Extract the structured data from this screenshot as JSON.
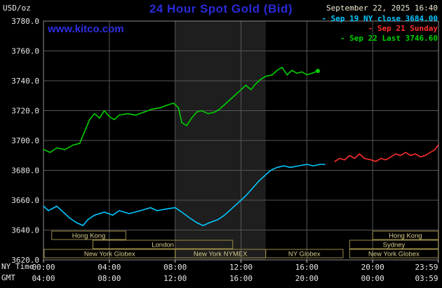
{
  "header": {
    "units_label": "USD/oz",
    "title": "24 Hour Spot Gold (Bid)",
    "site": "www.kitco.com",
    "datetime": "September 22, 2025 16:40",
    "legend": [
      {
        "label": "Sep 19 NY close 3684.00",
        "color": "#00c8ff"
      },
      {
        "label": "Sep 21 Sunday",
        "color": "#ff2e2e"
      },
      {
        "label": "Sep 22 Last 3746.60",
        "color": "#00d000"
      }
    ]
  },
  "axes": {
    "ny_time_label": "NY Time",
    "gmt_label": "GMT",
    "ny_ticks": [
      "00:00",
      "04:00",
      "08:00",
      "12:00",
      "16:00",
      "20:00",
      "23:59"
    ],
    "gmt_ticks": [
      "04:00",
      "08:00",
      "12:00",
      "16:00",
      "20:00",
      "00:00",
      "03:59"
    ]
  },
  "colors": {
    "background": "#000000",
    "grid": "#565656",
    "plot_border": "#8c8c8c",
    "nymex_band": "#1e1e1e",
    "session_border": "#9a8c46",
    "session_text": "#d9cb8a",
    "axis_text": "#e8e8e8",
    "tick": "#cccccc"
  },
  "chart_data": {
    "type": "line",
    "title": "24 Hour Spot Gold (Bid)",
    "ylabel": "USD/oz",
    "ylim": [
      3620,
      3780
    ],
    "ytick_step": 20,
    "x_hours_range": [
      0,
      24
    ],
    "xtick_hours": [
      0,
      4,
      8,
      12,
      16,
      20,
      23.983
    ],
    "grid": true,
    "legend_position": "top-right",
    "highlight_band_hours": [
      8,
      13.5
    ],
    "series": [
      {
        "name": "Sep 19 NY close 3684.00",
        "color": "#00c8ff",
        "points": [
          [
            0,
            3656
          ],
          [
            0.3,
            3653
          ],
          [
            0.8,
            3656
          ],
          [
            1.2,
            3652
          ],
          [
            1.6,
            3648
          ],
          [
            2.0,
            3645
          ],
          [
            2.4,
            3643
          ],
          [
            2.7,
            3647
          ],
          [
            3.1,
            3650
          ],
          [
            3.7,
            3652
          ],
          [
            4.2,
            3650
          ],
          [
            4.6,
            3653
          ],
          [
            5.2,
            3651
          ],
          [
            5.9,
            3653
          ],
          [
            6.5,
            3655
          ],
          [
            6.9,
            3653
          ],
          [
            7.4,
            3654
          ],
          [
            8.0,
            3655
          ],
          [
            8.4,
            3652
          ],
          [
            8.9,
            3648
          ],
          [
            9.3,
            3645
          ],
          [
            9.7,
            3643
          ],
          [
            10.1,
            3645
          ],
          [
            10.6,
            3647
          ],
          [
            11.0,
            3650
          ],
          [
            11.4,
            3654
          ],
          [
            11.8,
            3658
          ],
          [
            12.3,
            3663
          ],
          [
            12.7,
            3668
          ],
          [
            13.1,
            3673
          ],
          [
            13.5,
            3677
          ],
          [
            13.8,
            3680
          ],
          [
            14.2,
            3682
          ],
          [
            14.6,
            3683
          ],
          [
            15.0,
            3682
          ],
          [
            15.5,
            3683
          ],
          [
            16.0,
            3684
          ],
          [
            16.4,
            3683
          ],
          [
            16.8,
            3684
          ],
          [
            17.1,
            3684
          ]
        ]
      },
      {
        "name": "Sep 21 Sunday",
        "color": "#ff2e2e",
        "points": [
          [
            17.7,
            3686
          ],
          [
            18.0,
            3688
          ],
          [
            18.3,
            3687
          ],
          [
            18.6,
            3690
          ],
          [
            18.9,
            3688
          ],
          [
            19.2,
            3691
          ],
          [
            19.5,
            3688
          ],
          [
            19.9,
            3687
          ],
          [
            20.2,
            3686
          ],
          [
            20.5,
            3688
          ],
          [
            20.8,
            3687
          ],
          [
            21.1,
            3689
          ],
          [
            21.4,
            3691
          ],
          [
            21.7,
            3690
          ],
          [
            22.0,
            3692
          ],
          [
            22.3,
            3690
          ],
          [
            22.6,
            3691
          ],
          [
            22.9,
            3689
          ],
          [
            23.2,
            3690
          ],
          [
            23.5,
            3692
          ],
          [
            23.8,
            3694
          ],
          [
            23.98,
            3697
          ]
        ]
      },
      {
        "name": "Sep 22 Last 3746.60",
        "color": "#00d000",
        "end_dot": true,
        "points": [
          [
            0,
            3694
          ],
          [
            0.4,
            3692
          ],
          [
            0.8,
            3695
          ],
          [
            1.3,
            3694
          ],
          [
            1.8,
            3697
          ],
          [
            2.2,
            3698
          ],
          [
            2.5,
            3706
          ],
          [
            2.8,
            3714
          ],
          [
            3.1,
            3718
          ],
          [
            3.4,
            3715
          ],
          [
            3.7,
            3720
          ],
          [
            4.0,
            3716
          ],
          [
            4.3,
            3714
          ],
          [
            4.6,
            3717
          ],
          [
            5.1,
            3718
          ],
          [
            5.6,
            3717
          ],
          [
            6.1,
            3719
          ],
          [
            6.6,
            3721
          ],
          [
            7.1,
            3722
          ],
          [
            7.6,
            3724
          ],
          [
            7.9,
            3725
          ],
          [
            8.2,
            3722
          ],
          [
            8.4,
            3712
          ],
          [
            8.7,
            3710
          ],
          [
            9.0,
            3715
          ],
          [
            9.3,
            3719
          ],
          [
            9.6,
            3720
          ],
          [
            10.0,
            3718
          ],
          [
            10.4,
            3719
          ],
          [
            10.7,
            3721
          ],
          [
            11.0,
            3724
          ],
          [
            11.4,
            3728
          ],
          [
            11.7,
            3731
          ],
          [
            12.0,
            3734
          ],
          [
            12.3,
            3737
          ],
          [
            12.6,
            3734
          ],
          [
            12.9,
            3738
          ],
          [
            13.2,
            3741
          ],
          [
            13.5,
            3743
          ],
          [
            13.9,
            3744
          ],
          [
            14.2,
            3747
          ],
          [
            14.5,
            3749
          ],
          [
            14.8,
            3744
          ],
          [
            15.1,
            3747
          ],
          [
            15.4,
            3745
          ],
          [
            15.7,
            3746
          ],
          [
            16.0,
            3744
          ],
          [
            16.3,
            3745
          ],
          [
            16.67,
            3746.6
          ]
        ]
      }
    ],
    "sessions": [
      {
        "label": "Hong Kong",
        "row": 0,
        "start_hour": 0.5,
        "end_hour": 5.0
      },
      {
        "label": "Hong Kong",
        "row": 0,
        "start_hour": 20.0,
        "end_hour": 23.983
      },
      {
        "label": "London",
        "row": 1,
        "start_hour": 3.0,
        "end_hour": 11.5
      },
      {
        "label": "Sydney",
        "row": 1,
        "start_hour": 18.6,
        "end_hour": 23.983
      },
      {
        "label": "New York Globex",
        "row": 2,
        "start_hour": 0.04,
        "end_hour": 8.0
      },
      {
        "label": "New York NYMEX",
        "row": 2,
        "start_hour": 8.0,
        "end_hour": 13.5
      },
      {
        "label": "NY Globex",
        "row": 2,
        "start_hour": 13.5,
        "end_hour": 18.2
      },
      {
        "label": "New York Globex",
        "row": 2,
        "start_hour": 18.6,
        "end_hour": 23.983
      }
    ]
  }
}
